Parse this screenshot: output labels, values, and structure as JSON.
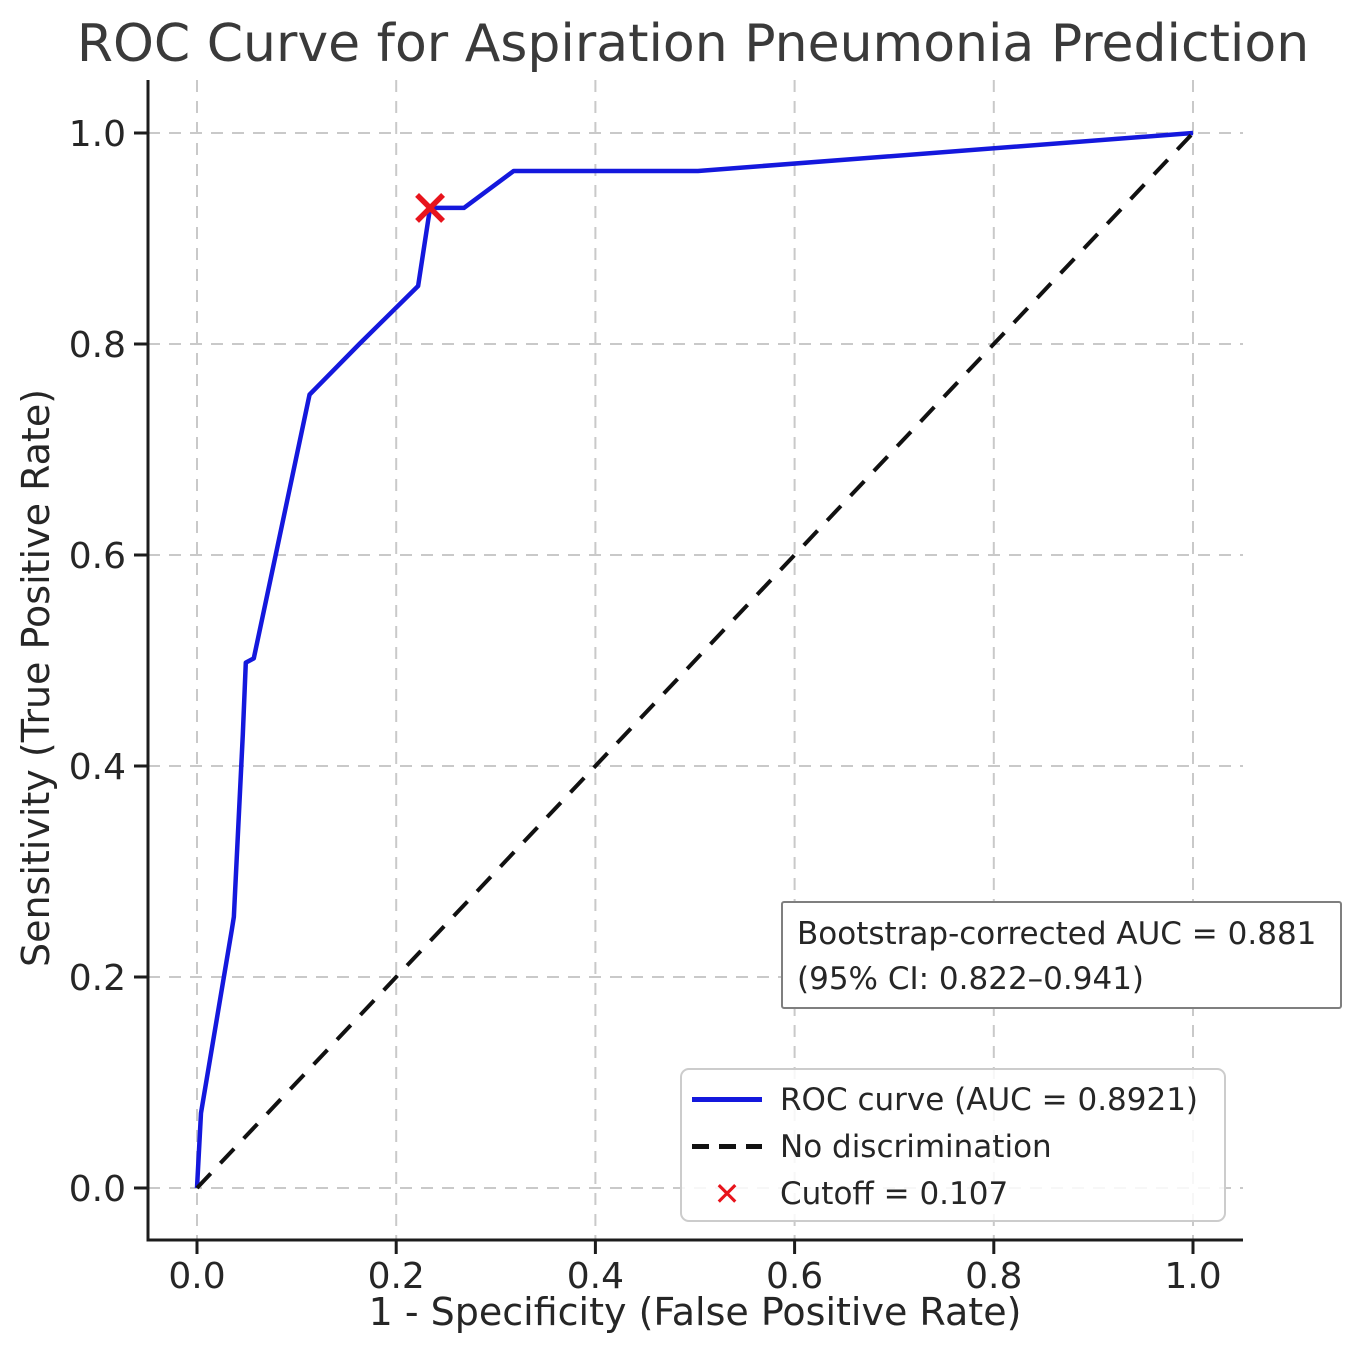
{
  "title": "ROC Curve for Aspiration Pneumonia Prediction",
  "axes": {
    "xlabel": "1 - Specificity (False Positive Rate)",
    "ylabel": "Sensitivity (True Positive Rate)"
  },
  "legend": {
    "items": [
      {
        "label": "ROC curve (AUC = 0.8921)",
        "sample": "solid-line",
        "color": "#1418dd"
      },
      {
        "label": "No discrimination",
        "sample": "dashed-line",
        "color": "#111111"
      },
      {
        "label": "Cutoff = 0.107",
        "sample": "x-marker",
        "color": "#e8141c"
      }
    ]
  },
  "annotation": {
    "line1": "Bootstrap-corrected AUC = 0.881",
    "line2": "(95% CI: 0.822–0.941)"
  },
  "icons": {
    "cutoff_marker": "✕"
  },
  "colors": {
    "roc_blue": "#1418dd",
    "diagonal_black": "#111111",
    "marker_red": "#e8141c",
    "grid_gray": "#c9c9c9",
    "spine_dark": "#1c1c1c",
    "tick_text": "#262626"
  },
  "chart_data": {
    "type": "line",
    "title": "ROC Curve for Aspiration Pneumonia Prediction",
    "xlabel": "1 - Specificity (False Positive Rate)",
    "ylabel": "Sensitivity (True Positive Rate)",
    "xlim": [
      -0.05,
      1.05
    ],
    "ylim": [
      -0.05,
      1.05
    ],
    "grid": true,
    "grid_style": "dashed",
    "legend_position": "lower right",
    "x_tick_values": [
      0.0,
      0.2,
      0.4,
      0.6,
      0.8,
      1.0
    ],
    "y_tick_values": [
      0.0,
      0.2,
      0.4,
      0.6,
      0.8,
      1.0
    ],
    "x_tick_labels": [
      "0.0",
      "0.2",
      "0.4",
      "0.6",
      "0.8",
      "1.0"
    ],
    "y_tick_labels": [
      "0.0",
      "0.2",
      "0.4",
      "0.6",
      "0.8",
      "1.0"
    ],
    "series": [
      {
        "name": "ROC curve (AUC = 0.8921)",
        "style": "solid",
        "color": "#1418dd",
        "points": [
          [
            0.0,
            0.0
          ],
          [
            0.004,
            0.071
          ],
          [
            0.035,
            0.245
          ],
          [
            0.037,
            0.257
          ],
          [
            0.046,
            0.43
          ],
          [
            0.049,
            0.498
          ],
          [
            0.057,
            0.502
          ],
          [
            0.079,
            0.6
          ],
          [
            0.113,
            0.752
          ],
          [
            0.163,
            0.8
          ],
          [
            0.222,
            0.855
          ],
          [
            0.234,
            0.929
          ],
          [
            0.268,
            0.929
          ],
          [
            0.318,
            0.964
          ],
          [
            0.503,
            0.964
          ],
          [
            1.0,
            1.0
          ]
        ]
      },
      {
        "name": "No discrimination",
        "style": "dashed",
        "color": "#111111",
        "points": [
          [
            0.0,
            0.0
          ],
          [
            1.0,
            1.0
          ]
        ]
      }
    ],
    "markers": [
      {
        "name": "Cutoff = 0.107",
        "symbol": "x",
        "color": "#e8141c",
        "x": 0.234,
        "y": 0.929
      }
    ],
    "auc": 0.8921,
    "bootstrap_corrected_auc": 0.881,
    "auc_ci_95": [
      0.822,
      0.941
    ],
    "cutoff": 0.107
  }
}
